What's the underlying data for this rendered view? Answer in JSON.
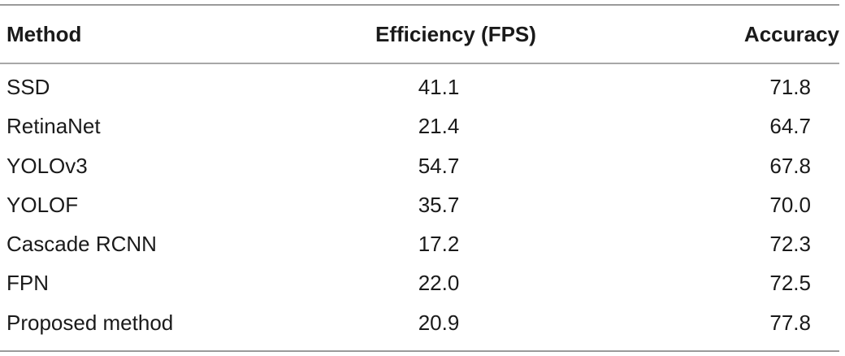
{
  "table": {
    "headers": {
      "method": "Method",
      "efficiency": "Efficiency (FPS)",
      "accuracy": "Accuracy"
    },
    "rows": [
      {
        "method": "SSD",
        "efficiency": "41.1",
        "accuracy": "71.8"
      },
      {
        "method": "RetinaNet",
        "efficiency": "21.4",
        "accuracy": "64.7"
      },
      {
        "method": "YOLOv3",
        "efficiency": "54.7",
        "accuracy": "67.8"
      },
      {
        "method": "YOLOF",
        "efficiency": "35.7",
        "accuracy": "70.0"
      },
      {
        "method": "Cascade RCNN",
        "efficiency": "17.2",
        "accuracy": "72.3"
      },
      {
        "method": "FPN",
        "efficiency": "22.0",
        "accuracy": "72.5"
      },
      {
        "method": "Proposed method",
        "efficiency": "20.9",
        "accuracy": "77.8"
      }
    ]
  }
}
